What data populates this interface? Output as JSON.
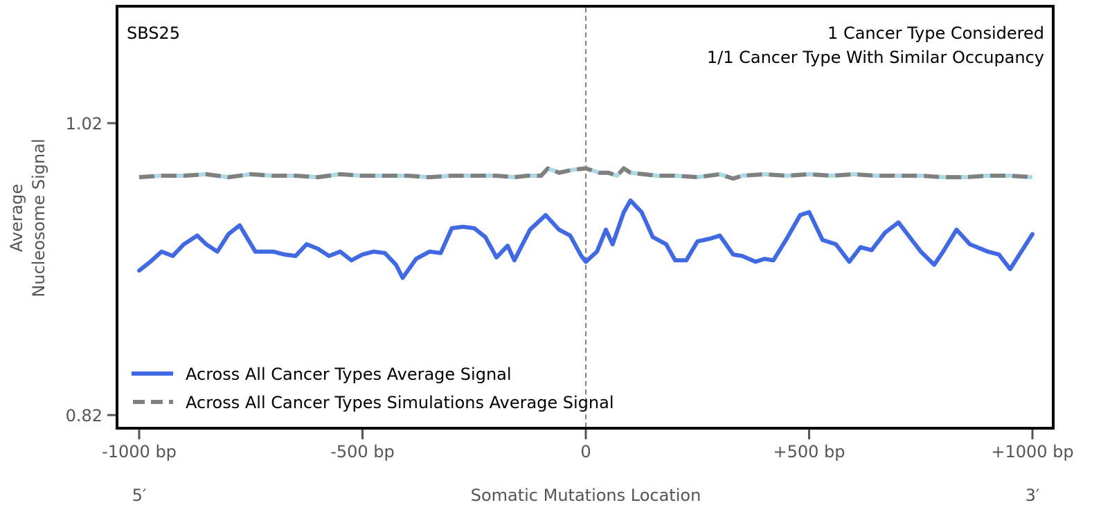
{
  "chart_data": {
    "type": "line",
    "title": "",
    "signature_label": "SBS25",
    "annotations": [
      "1 Cancer Type Considered",
      "1/1 Cancer Type With Similar Occupancy"
    ],
    "xlabel": "Somatic Mutations Location",
    "ylabel_lines": [
      "Average",
      "Nucleosome Signal"
    ],
    "xlim": [
      -1000,
      1000
    ],
    "ylim": [
      0.82,
      1.02
    ],
    "x_ticks": [
      {
        "value": -1000,
        "label": "-1000 bp"
      },
      {
        "value": -500,
        "label": "-500 bp"
      },
      {
        "value": 0,
        "label": "0"
      },
      {
        "value": 500,
        "label": "+500 bp"
      },
      {
        "value": 1000,
        "label": "+1000 bp"
      }
    ],
    "y_ticks": [
      {
        "value": 1.02,
        "label": "1.02"
      },
      {
        "value": 0.82,
        "label": "0.82"
      }
    ],
    "end_labels": {
      "left": "5′",
      "right": "3′"
    },
    "center_line": {
      "x": 0,
      "style": "dashed",
      "color": "#808080"
    },
    "grid": false,
    "legend_position": "lower-left",
    "series": [
      {
        "name": "Across All Cancer Types Average Signal",
        "color": "#4169e1",
        "style": "solid",
        "x": [
          -1000,
          -975,
          -950,
          -925,
          -900,
          -870,
          -850,
          -825,
          -800,
          -775,
          -740,
          -700,
          -675,
          -650,
          -625,
          -600,
          -575,
          -550,
          -525,
          -500,
          -475,
          -450,
          -425,
          -410,
          -380,
          -350,
          -325,
          -300,
          -275,
          -250,
          -225,
          -200,
          -175,
          -160,
          -125,
          -90,
          -60,
          -35,
          -10,
          0,
          25,
          45,
          60,
          85,
          100,
          125,
          150,
          180,
          200,
          225,
          250,
          280,
          300,
          330,
          350,
          380,
          400,
          420,
          450,
          480,
          500,
          530,
          560,
          590,
          615,
          640,
          670,
          700,
          725,
          750,
          780,
          800,
          830,
          860,
          900,
          925,
          950,
          975,
          1000
        ],
        "y": [
          0.919,
          0.925,
          0.932,
          0.929,
          0.937,
          0.943,
          0.937,
          0.932,
          0.944,
          0.95,
          0.932,
          0.932,
          0.93,
          0.929,
          0.937,
          0.934,
          0.929,
          0.932,
          0.926,
          0.93,
          0.932,
          0.931,
          0.923,
          0.914,
          0.927,
          0.932,
          0.931,
          0.948,
          0.949,
          0.948,
          0.942,
          0.928,
          0.936,
          0.926,
          0.947,
          0.957,
          0.947,
          0.943,
          0.929,
          0.925,
          0.932,
          0.947,
          0.937,
          0.959,
          0.967,
          0.959,
          0.942,
          0.937,
          0.926,
          0.926,
          0.939,
          0.941,
          0.943,
          0.93,
          0.929,
          0.925,
          0.927,
          0.926,
          0.941,
          0.957,
          0.959,
          0.94,
          0.937,
          0.925,
          0.935,
          0.933,
          0.945,
          0.952,
          0.942,
          0.932,
          0.923,
          0.932,
          0.947,
          0.937,
          0.932,
          0.93,
          0.92,
          0.932,
          0.944
        ]
      },
      {
        "name": "Across All Cancer Types Simulations Average Signal",
        "color": "#808080",
        "underlay_color": "#add8e6",
        "style": "dashed",
        "x": [
          -1000,
          -950,
          -900,
          -850,
          -800,
          -750,
          -700,
          -650,
          -600,
          -550,
          -500,
          -450,
          -400,
          -350,
          -300,
          -250,
          -200,
          -160,
          -130,
          -100,
          -85,
          -60,
          -30,
          0,
          30,
          50,
          70,
          85,
          100,
          130,
          160,
          200,
          250,
          300,
          330,
          350,
          400,
          450,
          500,
          550,
          600,
          650,
          700,
          750,
          800,
          850,
          900,
          950,
          1000
        ],
        "y": [
          0.983,
          0.984,
          0.984,
          0.985,
          0.983,
          0.985,
          0.984,
          0.984,
          0.983,
          0.985,
          0.984,
          0.984,
          0.984,
          0.983,
          0.984,
          0.984,
          0.984,
          0.983,
          0.984,
          0.984,
          0.989,
          0.986,
          0.988,
          0.989,
          0.986,
          0.986,
          0.984,
          0.989,
          0.986,
          0.985,
          0.984,
          0.984,
          0.983,
          0.985,
          0.982,
          0.984,
          0.985,
          0.984,
          0.985,
          0.984,
          0.985,
          0.984,
          0.984,
          0.984,
          0.983,
          0.983,
          0.984,
          0.984,
          0.983
        ]
      }
    ]
  }
}
